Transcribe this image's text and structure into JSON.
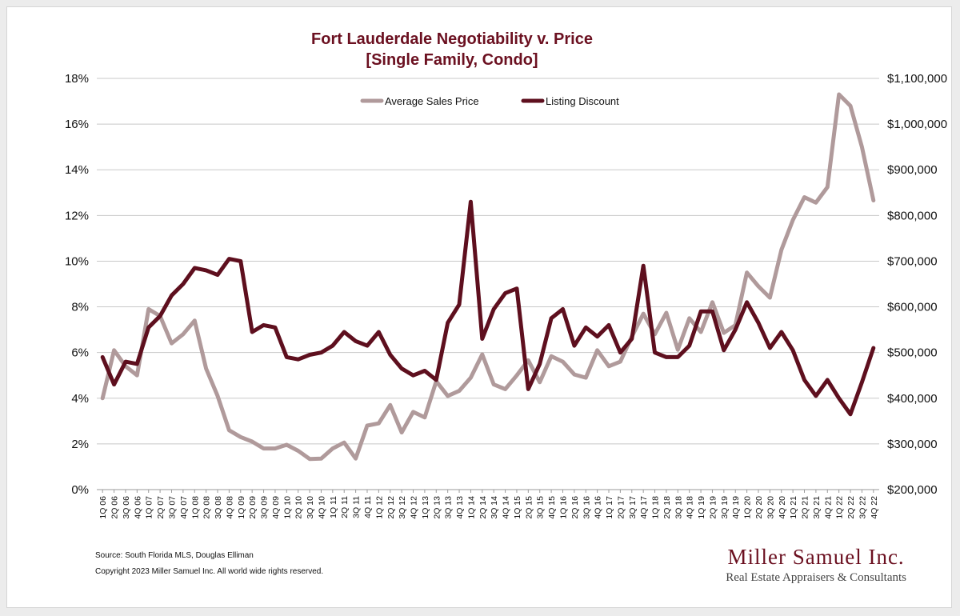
{
  "source_note": "Source: South Florida MLS, Douglas Elliman",
  "copyright_note": "Copyright 2023 Miller Samuel Inc.  All world wide rights reserved.",
  "logo": {
    "name": "Miller Samuel Inc.",
    "tagline": "Real Estate Appraisers & Consultants"
  },
  "colors": {
    "title": "#6b1020",
    "price": "#b09a9b",
    "discount": "#5e0f1e",
    "grid": "#c8c8c8"
  },
  "chart_data": {
    "type": "line",
    "title": "Fort Lauderdale Negotiability v. Price",
    "subtitle": "[Single Family, Condo]",
    "legend_position": "top-center",
    "grid": true,
    "y_left": {
      "min": 0,
      "max": 18,
      "ticks": [
        "0%",
        "2%",
        "4%",
        "6%",
        "8%",
        "10%",
        "12%",
        "14%",
        "16%",
        "18%"
      ]
    },
    "y_right": {
      "min": 200000,
      "max": 1100000,
      "ticks": [
        "$200,000",
        "$300,000",
        "$400,000",
        "$500,000",
        "$600,000",
        "$700,000",
        "$800,000",
        "$900,000",
        "$1,000,000",
        "$1,100,000"
      ]
    },
    "categories": [
      "1Q 06",
      "2Q 06",
      "3Q 06",
      "4Q 06",
      "1Q 07",
      "2Q 07",
      "3Q 07",
      "4Q 07",
      "1Q 08",
      "2Q 08",
      "3Q 08",
      "4Q 08",
      "1Q 09",
      "2Q 09",
      "3Q 09",
      "4Q 09",
      "1Q 10",
      "2Q 10",
      "3Q 10",
      "4Q 10",
      "1Q 11",
      "2Q 11",
      "3Q 11",
      "4Q 11",
      "1Q 12",
      "2Q 12",
      "3Q 12",
      "4Q 12",
      "1Q 13",
      "2Q 13",
      "3Q 13",
      "4Q 13",
      "1Q 14",
      "2Q 14",
      "3Q 14",
      "4Q 14",
      "1Q 15",
      "2Q 15",
      "3Q 15",
      "4Q 15",
      "1Q 16",
      "2Q 16",
      "3Q 16",
      "4Q 16",
      "1Q 17",
      "2Q 17",
      "3Q 17",
      "4Q 17",
      "1Q 18",
      "2Q 18",
      "3Q 18",
      "4Q 18",
      "1Q 19",
      "2Q 19",
      "3Q 19",
      "4Q 19",
      "1Q 20",
      "2Q 20",
      "3Q 20",
      "4Q 20",
      "1Q 21",
      "2Q 21",
      "3Q 21",
      "4Q 21",
      "1Q 22",
      "2Q 22",
      "3Q 22",
      "4Q 22"
    ],
    "series": [
      {
        "name": "Average Sales Price",
        "axis": "right",
        "values": [
          400000,
          505000,
          470000,
          450000,
          595000,
          580000,
          520000,
          540000,
          570000,
          465000,
          405000,
          330000,
          315000,
          305000,
          290000,
          290000,
          298000,
          285000,
          267000,
          268000,
          290000,
          303000,
          268000,
          340000,
          345000,
          385000,
          325000,
          370000,
          358000,
          437000,
          405000,
          416000,
          445000,
          496000,
          430000,
          420000,
          450000,
          483000,
          435000,
          492000,
          480000,
          452000,
          445000,
          505000,
          470000,
          480000,
          535000,
          585000,
          540000,
          587000,
          506000,
          575000,
          545000,
          610000,
          543000,
          560000,
          675000,
          645000,
          620000,
          725000,
          790000,
          840000,
          828000,
          862000,
          1065000,
          1040000,
          950000,
          833000
        ]
      },
      {
        "name": "Listing Discount",
        "axis": "left",
        "values": [
          5.8,
          4.6,
          5.6,
          5.5,
          7.1,
          7.6,
          8.5,
          9.0,
          9.7,
          9.6,
          9.4,
          10.1,
          10.0,
          6.9,
          7.2,
          7.1,
          5.8,
          5.7,
          5.9,
          6.0,
          6.3,
          6.9,
          6.5,
          6.3,
          6.9,
          5.9,
          5.3,
          5.0,
          5.2,
          4.8,
          7.3,
          8.1,
          12.6,
          6.6,
          7.9,
          8.6,
          8.8,
          4.4,
          5.5,
          7.5,
          7.9,
          6.3,
          7.1,
          6.7,
          7.2,
          6.0,
          6.6,
          9.8,
          6.0,
          5.8,
          5.8,
          6.3,
          7.8,
          7.8,
          6.1,
          7.0,
          8.2,
          7.3,
          6.2,
          6.9,
          6.1,
          4.8,
          4.1,
          4.8,
          4.0,
          3.3,
          4.7,
          6.2
        ]
      }
    ]
  }
}
